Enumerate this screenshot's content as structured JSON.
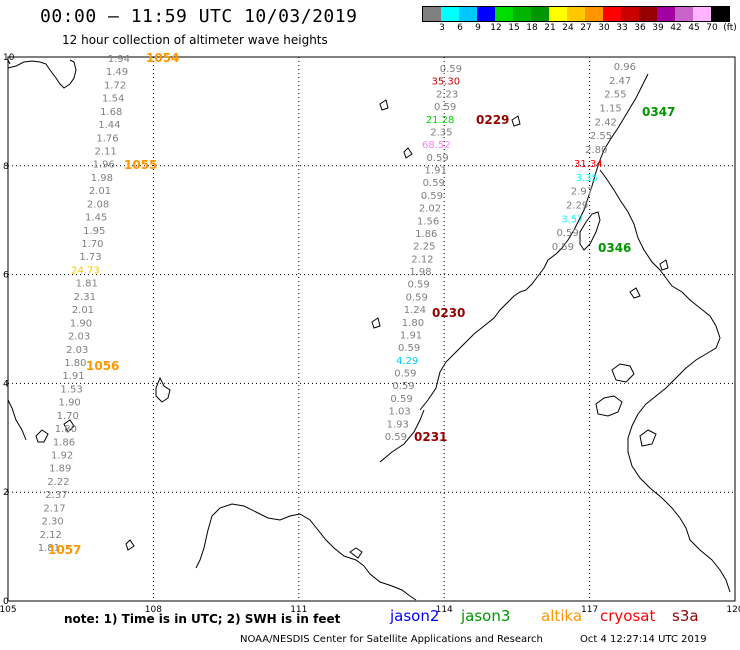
{
  "header": {
    "title": "00:00 – 11:59 UTC 10/03/2019",
    "subtitle": "12 hour collection of altimeter wave heights"
  },
  "legend": {
    "colors": [
      "#808080",
      "#00ffff",
      "#00c8ff",
      "#0000ff",
      "#00dc00",
      "#00b400",
      "#009600",
      "#ffff00",
      "#ffc800",
      "#ff9600",
      "#ff0000",
      "#c80000",
      "#960000",
      "#a000a0",
      "#c864c8",
      "#ffb4ff",
      "#000000"
    ],
    "labels": [
      "3",
      "6",
      "9",
      "12",
      "15",
      "18",
      "21",
      "24",
      "27",
      "30",
      "33",
      "36",
      "39",
      "42",
      "45",
      "70",
      "(ft)"
    ]
  },
  "axes": {
    "x_ticks": [
      "105",
      "108",
      "111",
      "114",
      "117",
      "120"
    ],
    "y_ticks": [
      "0",
      "2",
      "4",
      "6",
      "8",
      "10"
    ]
  },
  "tracks": [
    {
      "id": "west",
      "points": [
        {
          "v": "1.94",
          "c": "#808080"
        },
        {
          "v": "1.49",
          "c": "#808080"
        },
        {
          "v": "1.72",
          "c": "#808080"
        },
        {
          "v": "1.54",
          "c": "#808080"
        },
        {
          "v": "1.68",
          "c": "#808080"
        },
        {
          "v": "1.44",
          "c": "#808080"
        },
        {
          "v": "1.76",
          "c": "#808080"
        },
        {
          "v": "2.11",
          "c": "#808080"
        },
        {
          "v": "1.96",
          "c": "#808080"
        },
        {
          "v": "1.98",
          "c": "#808080"
        },
        {
          "v": "2.01",
          "c": "#808080"
        },
        {
          "v": "2.08",
          "c": "#808080"
        },
        {
          "v": "1.45",
          "c": "#808080"
        },
        {
          "v": "1.95",
          "c": "#808080"
        },
        {
          "v": "1.70",
          "c": "#808080"
        },
        {
          "v": "1.73",
          "c": "#808080"
        },
        {
          "v": "24.73",
          "c": "#ffc800"
        },
        {
          "v": "1.81",
          "c": "#808080"
        },
        {
          "v": "2.31",
          "c": "#808080"
        },
        {
          "v": "2.01",
          "c": "#808080"
        },
        {
          "v": "1.90",
          "c": "#808080"
        },
        {
          "v": "2.03",
          "c": "#808080"
        },
        {
          "v": "2.03",
          "c": "#808080"
        },
        {
          "v": "1.80",
          "c": "#808080"
        },
        {
          "v": "1.91",
          "c": "#808080"
        },
        {
          "v": "1.53",
          "c": "#808080"
        },
        {
          "v": "1.90",
          "c": "#808080"
        },
        {
          "v": "1.70",
          "c": "#808080"
        },
        {
          "v": "1.80",
          "c": "#808080"
        },
        {
          "v": "1.86",
          "c": "#808080"
        },
        {
          "v": "1.92",
          "c": "#808080"
        },
        {
          "v": "1.89",
          "c": "#808080"
        },
        {
          "v": "2.22",
          "c": "#808080"
        },
        {
          "v": "2.37",
          "c": "#808080"
        },
        {
          "v": "2.17",
          "c": "#808080"
        },
        {
          "v": "2.30",
          "c": "#808080"
        },
        {
          "v": "2.12",
          "c": "#808080"
        },
        {
          "v": "1.81",
          "c": "#808080"
        }
      ],
      "times": [
        {
          "t": "1054",
          "c": "#ff9600"
        },
        {
          "t": "1055",
          "c": "#ff9600"
        },
        {
          "t": "1056",
          "c": "#ff9600"
        },
        {
          "t": "1057",
          "c": "#ff9600"
        }
      ]
    },
    {
      "id": "center",
      "points": [
        {
          "v": "0.59",
          "c": "#808080"
        },
        {
          "v": "35.30",
          "c": "#c80000"
        },
        {
          "v": "2.23",
          "c": "#808080"
        },
        {
          "v": "0.59",
          "c": "#808080"
        },
        {
          "v": "21.28",
          "c": "#00dc00"
        },
        {
          "v": "2.35",
          "c": "#808080"
        },
        {
          "v": "68.52",
          "c": "#ff80ff"
        },
        {
          "v": "0.59",
          "c": "#808080"
        },
        {
          "v": "1.91",
          "c": "#808080"
        },
        {
          "v": "0.59",
          "c": "#808080"
        },
        {
          "v": "0.59",
          "c": "#808080"
        },
        {
          "v": "2.02",
          "c": "#808080"
        },
        {
          "v": "1.56",
          "c": "#808080"
        },
        {
          "v": "1.86",
          "c": "#808080"
        },
        {
          "v": "2.25",
          "c": "#808080"
        },
        {
          "v": "2.12",
          "c": "#808080"
        },
        {
          "v": "1.98",
          "c": "#808080"
        },
        {
          "v": "0.59",
          "c": "#808080"
        },
        {
          "v": "0.59",
          "c": "#808080"
        },
        {
          "v": "1.24",
          "c": "#808080"
        },
        {
          "v": "1.80",
          "c": "#808080"
        },
        {
          "v": "1.91",
          "c": "#808080"
        },
        {
          "v": "0.59",
          "c": "#808080"
        },
        {
          "v": "4.29",
          "c": "#00c8ff"
        },
        {
          "v": "0.59",
          "c": "#808080"
        },
        {
          "v": "0.59",
          "c": "#808080"
        },
        {
          "v": "0.59",
          "c": "#808080"
        },
        {
          "v": "1.03",
          "c": "#808080"
        },
        {
          "v": "1.93",
          "c": "#808080"
        },
        {
          "v": "0.59",
          "c": "#808080"
        }
      ],
      "times": [
        {
          "t": "0229",
          "c": "#960000"
        },
        {
          "t": "0230",
          "c": "#960000"
        },
        {
          "t": "0231",
          "c": "#960000"
        }
      ]
    },
    {
      "id": "east",
      "points": [
        {
          "v": "0.96",
          "c": "#808080"
        },
        {
          "v": "2.47",
          "c": "#808080"
        },
        {
          "v": "2.55",
          "c": "#808080"
        },
        {
          "v": "1.15",
          "c": "#808080"
        },
        {
          "v": "2.42",
          "c": "#808080"
        },
        {
          "v": "2.55",
          "c": "#808080"
        },
        {
          "v": "2.80",
          "c": "#808080"
        },
        {
          "v": "31.34",
          "c": "#ff0000"
        },
        {
          "v": "3.35",
          "c": "#00ffff"
        },
        {
          "v": "2.97",
          "c": "#808080"
        },
        {
          "v": "2.29",
          "c": "#808080"
        },
        {
          "v": "3.57",
          "c": "#00ffff"
        },
        {
          "v": "0.59",
          "c": "#808080"
        },
        {
          "v": "0.59",
          "c": "#808080"
        }
      ],
      "times": [
        {
          "t": "0347",
          "c": "#009600"
        },
        {
          "t": "0346",
          "c": "#009600"
        }
      ]
    }
  ],
  "footer": {
    "note": "note: 1) Time is in UTC; 2) SWH is in feet",
    "satellites": [
      {
        "name": "jason2",
        "color": "#0000ff"
      },
      {
        "name": "jason3",
        "color": "#009600"
      },
      {
        "name": "altika",
        "color": "#ff9600"
      },
      {
        "name": "cryosat",
        "color": "#ff0000"
      },
      {
        "name": "s3a",
        "color": "#960000"
      }
    ],
    "credit": "NOAA/NESDIS Center for Satellite Applications and Research",
    "generated": "Oct  4 12:27:14 UTC 2019"
  }
}
